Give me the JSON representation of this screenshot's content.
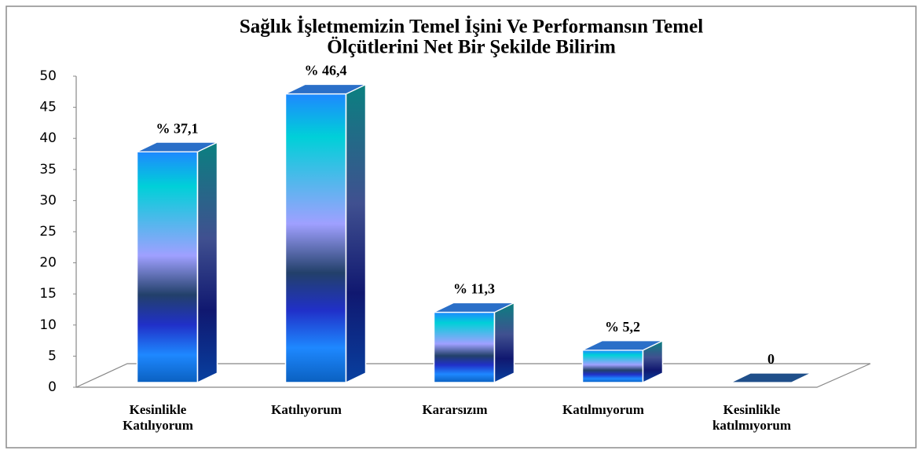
{
  "chart_data": {
    "type": "bar3d",
    "title": [
      "Sağlık İşletmemizin Temel İşini Ve Performansın Temel",
      "Ölçütlerini Net Bir Şekilde Bilirim"
    ],
    "categories": [
      "Kesinlikle Katılıyorum",
      "Katılıyorum",
      "Kararsızım",
      "Katılmıyorum",
      "Kesinlikle katılmıyorum"
    ],
    "values": [
      37.1,
      46.4,
      11.3,
      5.2,
      0
    ],
    "value_labels": [
      "% 37,1",
      "% 46,4",
      "% 11,3",
      "% 5,2",
      "0"
    ],
    "color": "#1e88ff",
    "ylim": [
      0,
      50
    ],
    "yticks": [
      0,
      5,
      10,
      15,
      20,
      25,
      30,
      35,
      40,
      45,
      50
    ]
  }
}
